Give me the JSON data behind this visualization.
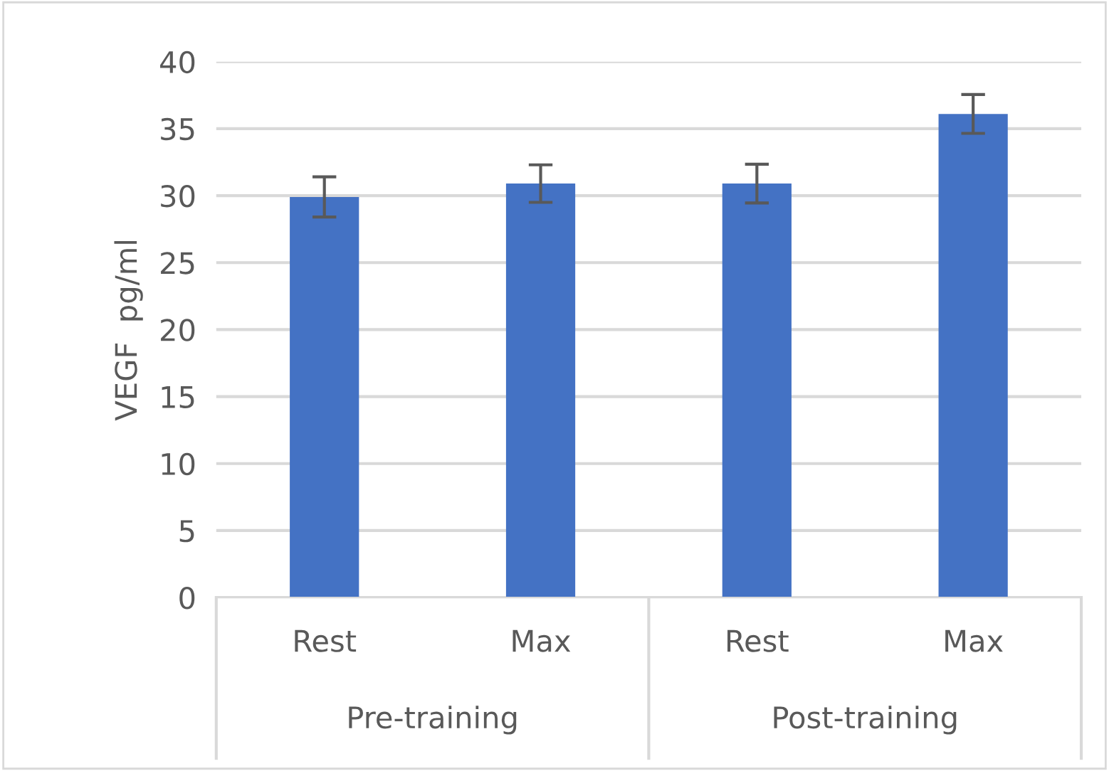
{
  "chart_data": {
    "type": "bar",
    "ylabel": "VEGF  pg/ml",
    "categories": [
      "Rest",
      "Max",
      "Rest",
      "Max"
    ],
    "values": [
      29.9,
      30.9,
      30.9,
      36.1
    ],
    "errors": [
      1.5,
      1.4,
      1.45,
      1.45
    ],
    "color": "#4472c4",
    "ylim": [
      0,
      40
    ],
    "yticks": [
      0,
      5,
      10,
      15,
      20,
      25,
      30,
      35,
      40
    ],
    "grid": "y",
    "annotations": [
      "Pre-training",
      "Post-training"
    ]
  }
}
